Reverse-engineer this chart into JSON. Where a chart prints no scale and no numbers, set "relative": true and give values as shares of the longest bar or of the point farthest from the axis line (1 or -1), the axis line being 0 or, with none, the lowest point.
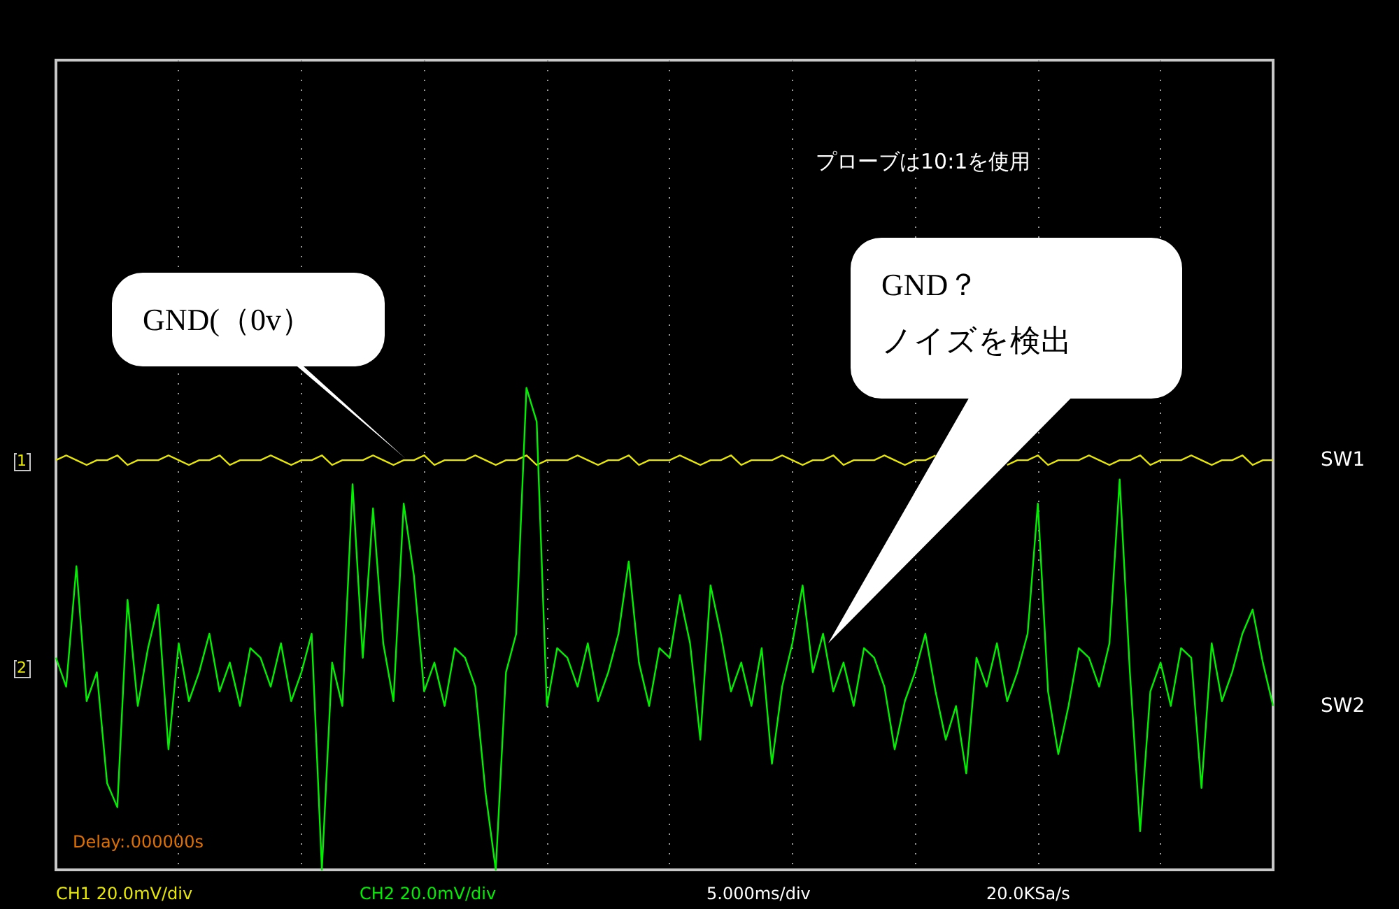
{
  "chart_data": {
    "type": "line",
    "relative": true,
    "grid": "x",
    "legend": false,
    "line_style": "solid",
    "categories": [
      null,
      null,
      null,
      null,
      null,
      null,
      null,
      null,
      null,
      null,
      null,
      null,
      null,
      null,
      null,
      null,
      null,
      null,
      null,
      null,
      null,
      null,
      null,
      null,
      null,
      null,
      null,
      null,
      null,
      null,
      null,
      null,
      null,
      null,
      null,
      null,
      null,
      null,
      null,
      null,
      null,
      null,
      null,
      null,
      null,
      null,
      null,
      null,
      null,
      null,
      null,
      null,
      null,
      null,
      null,
      null,
      null,
      null,
      null,
      null,
      null,
      null,
      null,
      null,
      null,
      null,
      null,
      null,
      null,
      null,
      null,
      null,
      null,
      null,
      null,
      null,
      null,
      null,
      null,
      null,
      null,
      null,
      null,
      null,
      null,
      null,
      null,
      null,
      null,
      null,
      null,
      null,
      null,
      null,
      null,
      null,
      null,
      null,
      null,
      null,
      null,
      null,
      null,
      null,
      null,
      null,
      null,
      null,
      null,
      null,
      null,
      null,
      null,
      null,
      null,
      null,
      null,
      null,
      null,
      null
    ],
    "series": [
      {
        "name": "SW1",
        "color": "#e8e800",
        "values": [
          0.85,
          0.86,
          0.85,
          0.84,
          0.85,
          0.85,
          0.86,
          0.84,
          0.85,
          0.85,
          0.85,
          0.86,
          0.85,
          0.84,
          0.85,
          0.85,
          0.86,
          0.84,
          0.85,
          0.85,
          0.85,
          0.86,
          0.85,
          0.84,
          0.85,
          0.85,
          0.86,
          0.84,
          0.85,
          0.85,
          0.85,
          0.86,
          0.85,
          0.84,
          0.85,
          0.85,
          0.86,
          0.84,
          0.85,
          0.85,
          0.85,
          0.86,
          0.85,
          0.84,
          0.85,
          0.85,
          0.86,
          0.84,
          0.85,
          0.85,
          0.85,
          0.86,
          0.85,
          0.84,
          0.85,
          0.85,
          0.86,
          0.84,
          0.85,
          0.85,
          0.85,
          0.86,
          0.85,
          0.84,
          0.85,
          0.85,
          0.86,
          0.84,
          0.85,
          0.85,
          0.85,
          0.86,
          0.85,
          0.84,
          0.85,
          0.85,
          0.86,
          0.84,
          0.85,
          0.85,
          0.85,
          0.86,
          0.85,
          0.84,
          0.85,
          0.85,
          0.86,
          null,
          null,
          null,
          null,
          null,
          null,
          0.84,
          0.85,
          0.85,
          0.86,
          0.84,
          0.85,
          0.85,
          0.85,
          0.86,
          0.85,
          0.84,
          0.85,
          0.85,
          0.86,
          0.84,
          0.85,
          0.85,
          0.85,
          0.86,
          0.85,
          0.84,
          0.85,
          0.85,
          0.86,
          0.84,
          0.85,
          0.85
        ]
      },
      {
        "name": "SW2",
        "color": "#00f000",
        "values": [
          0.44,
          0.38,
          0.63,
          0.35,
          0.41,
          0.18,
          0.13,
          0.56,
          0.34,
          0.46,
          0.55,
          0.25,
          0.47,
          0.35,
          0.41,
          0.49,
          0.37,
          0.43,
          0.34,
          0.46,
          0.44,
          0.38,
          0.47,
          0.35,
          0.41,
          0.49,
          0,
          0.43,
          0.34,
          0.8,
          0.44,
          0.75,
          0.47,
          0.35,
          0.76,
          0.61,
          0.37,
          0.43,
          0.34,
          0.46,
          0.44,
          0.38,
          0.16,
          0,
          0.41,
          0.49,
          1,
          0.93,
          0.34,
          0.46,
          0.44,
          0.38,
          0.47,
          0.35,
          0.41,
          0.49,
          0.64,
          0.43,
          0.34,
          0.46,
          0.44,
          0.57,
          0.47,
          0.27,
          0.59,
          0.49,
          0.37,
          0.43,
          0.34,
          0.46,
          0.22,
          0.38,
          0.47,
          0.59,
          0.41,
          0.49,
          0.37,
          0.43,
          0.34,
          0.46,
          0.44,
          0.38,
          0.25,
          0.35,
          0.41,
          0.49,
          0.37,
          0.27,
          0.34,
          0.2,
          0.44,
          0.38,
          0.47,
          0.35,
          0.41,
          0.49,
          0.76,
          0.37,
          0.24,
          0.34,
          0.46,
          0.44,
          0.38,
          0.47,
          0.81,
          0.41,
          0.08,
          0.37,
          0.43,
          0.34,
          0.46,
          0.44,
          0.17,
          0.47,
          0.35,
          0.41,
          0.49,
          0.54,
          0.43,
          0.34
        ]
      }
    ],
    "annotations": [
      "プローブは10:1を使用",
      "GND(（0v）",
      "GND？",
      "ノイズを検出",
      "Delay:.000000s",
      "CH1 20.0mV/div",
      "CH2 20.0mV/div",
      "5.000ms/div",
      "20.0KSa/s",
      "1",
      "2"
    ]
  }
}
